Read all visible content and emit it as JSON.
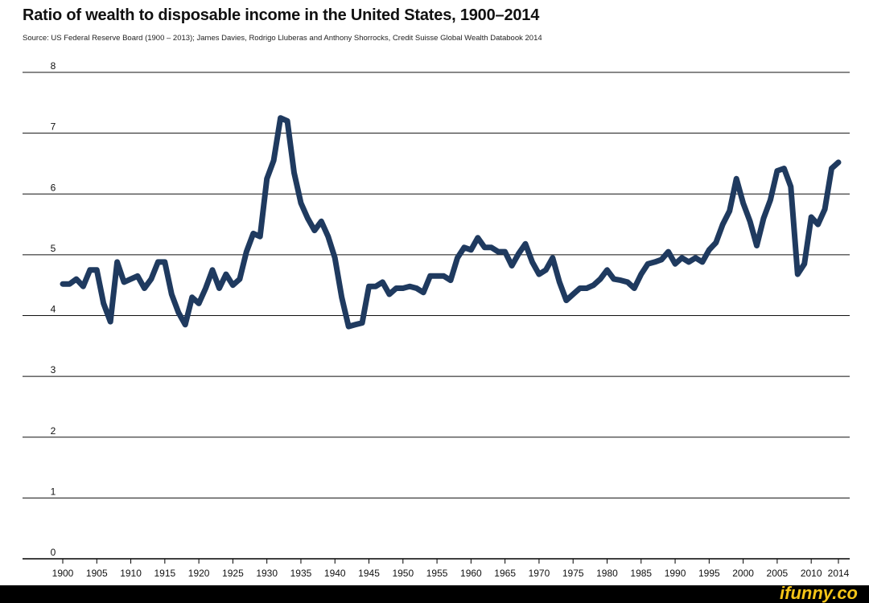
{
  "chart_data": {
    "type": "line",
    "title": "Ratio of wealth to disposable income in the United States, 1900–2014",
    "source": "Source: US Federal Reserve Board (1900 – 2013); James Davies, Rodrigo Lluberas and Anthony Shorrocks, Credit Suisse Global Wealth Databook 2014",
    "xlabel": "",
    "ylabel": "",
    "xlim": [
      1900,
      2014
    ],
    "ylim": [
      0,
      8
    ],
    "yticks": [
      "0",
      "1",
      "2",
      "3",
      "4",
      "5",
      "6",
      "7",
      "8"
    ],
    "xticks": [
      "1900",
      "1905",
      "1910",
      "1915",
      "1920",
      "1925",
      "1930",
      "1935",
      "1940",
      "1945",
      "1950",
      "1955",
      "1960",
      "1965",
      "1970",
      "1975",
      "1980",
      "1985",
      "1990",
      "1995",
      "2000",
      "2005",
      "2010",
      "2014"
    ],
    "grid": true,
    "line_color": "#1f3a5f",
    "series": [
      {
        "name": "Wealth to disposable income ratio",
        "x": [
          1900,
          1901,
          1902,
          1903,
          1904,
          1905,
          1906,
          1907,
          1908,
          1909,
          1910,
          1911,
          1912,
          1913,
          1914,
          1915,
          1916,
          1917,
          1918,
          1919,
          1920,
          1921,
          1922,
          1923,
          1924,
          1925,
          1926,
          1927,
          1928,
          1929,
          1930,
          1931,
          1932,
          1933,
          1934,
          1935,
          1936,
          1937,
          1938,
          1939,
          1940,
          1941,
          1942,
          1943,
          1944,
          1945,
          1946,
          1947,
          1948,
          1949,
          1950,
          1951,
          1952,
          1953,
          1954,
          1955,
          1956,
          1957,
          1958,
          1959,
          1960,
          1961,
          1962,
          1963,
          1964,
          1965,
          1966,
          1967,
          1968,
          1969,
          1970,
          1971,
          1972,
          1973,
          1974,
          1975,
          1976,
          1977,
          1978,
          1979,
          1980,
          1981,
          1982,
          1983,
          1984,
          1985,
          1986,
          1987,
          1988,
          1989,
          1990,
          1991,
          1992,
          1993,
          1994,
          1995,
          1996,
          1997,
          1998,
          1999,
          2000,
          2001,
          2002,
          2003,
          2004,
          2005,
          2006,
          2007,
          2008,
          2009,
          2010,
          2011,
          2012,
          2013,
          2014
        ],
        "values": [
          4.52,
          4.52,
          4.6,
          4.48,
          4.75,
          4.75,
          4.2,
          3.9,
          4.88,
          4.55,
          4.6,
          4.65,
          4.45,
          4.6,
          4.88,
          4.88,
          4.35,
          4.05,
          3.85,
          4.3,
          4.2,
          4.45,
          4.75,
          4.45,
          4.68,
          4.5,
          4.6,
          5.05,
          5.35,
          5.3,
          6.25,
          6.55,
          7.25,
          7.2,
          6.35,
          5.85,
          5.6,
          5.4,
          5.55,
          5.3,
          4.95,
          4.3,
          3.82,
          3.85,
          3.88,
          4.48,
          4.48,
          4.55,
          4.35,
          4.45,
          4.45,
          4.48,
          4.45,
          4.38,
          4.65,
          4.65,
          4.65,
          4.58,
          4.95,
          5.12,
          5.08,
          5.28,
          5.12,
          5.12,
          5.05,
          5.05,
          4.82,
          5.02,
          5.18,
          4.88,
          4.68,
          4.75,
          4.95,
          4.55,
          4.25,
          4.35,
          4.45,
          4.45,
          4.5,
          4.6,
          4.75,
          4.6,
          4.58,
          4.55,
          4.45,
          4.68,
          4.85,
          4.88,
          4.92,
          5.05,
          4.85,
          4.95,
          4.88,
          4.95,
          4.88,
          5.08,
          5.2,
          5.5,
          5.72,
          6.25,
          5.85,
          5.55,
          5.15,
          5.6,
          5.9,
          6.38,
          6.42,
          6.12,
          4.68,
          4.85,
          5.62,
          5.5,
          5.75,
          6.42,
          6.52
        ]
      }
    ]
  },
  "watermark": "ifunny.co"
}
